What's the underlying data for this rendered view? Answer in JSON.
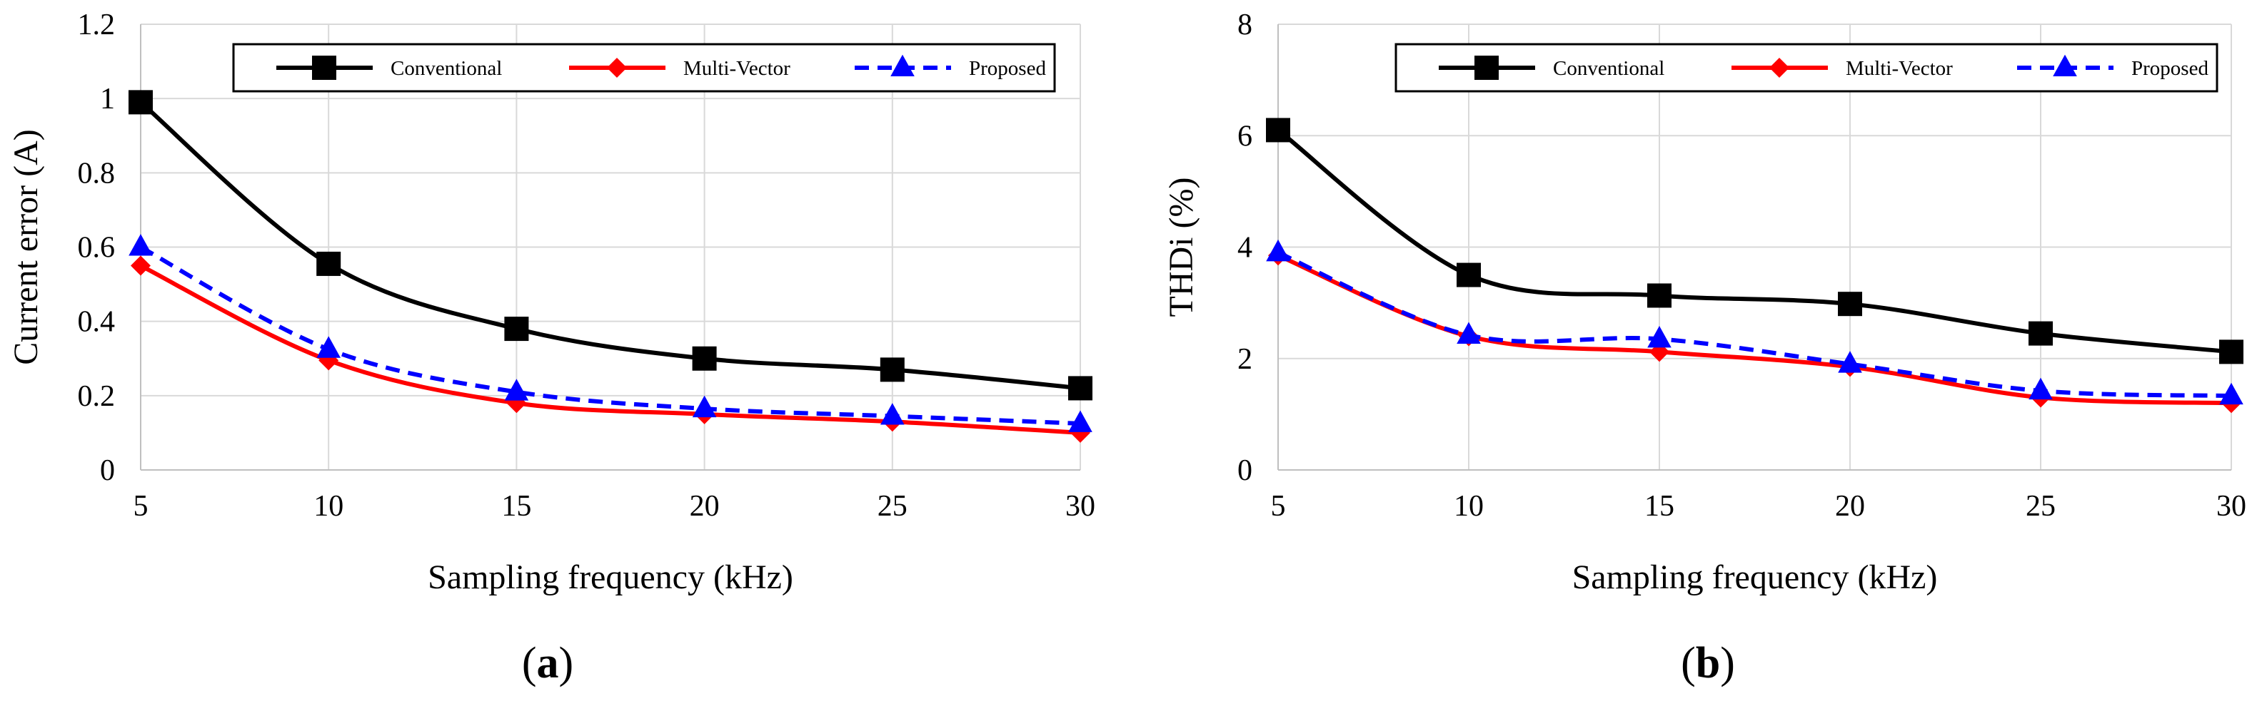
{
  "chart_data": [
    {
      "type": "line",
      "caption": "(a)",
      "caption_letter": "a",
      "xlabel": "Sampling frequency (kHz)",
      "ylabel": "Current error (A)",
      "x": [
        5,
        10,
        15,
        20,
        25,
        30
      ],
      "xlim": [
        5,
        30
      ],
      "xticks": [
        "5",
        "10",
        "15",
        "20",
        "25",
        "30"
      ],
      "ylim": [
        0,
        1.2
      ],
      "yticks": [
        "0",
        "0.2",
        "0.4",
        "0.6",
        "0.8",
        "1",
        "1.2"
      ],
      "grid": true,
      "legend": "top, horizontal, boxed",
      "series": [
        {
          "name": "Conventional",
          "values": [
            0.99,
            0.555,
            0.38,
            0.3,
            0.27,
            0.22
          ],
          "color": "#000000",
          "marker": "square",
          "dash": "solid"
        },
        {
          "name": "Multi-Vector",
          "values": [
            0.55,
            0.295,
            0.18,
            0.15,
            0.13,
            0.1
          ],
          "color": "#ff0000",
          "marker": "diamond",
          "dash": "solid"
        },
        {
          "name": "Proposed",
          "values": [
            0.6,
            0.325,
            0.21,
            0.165,
            0.145,
            0.125
          ],
          "color": "#0000ff",
          "marker": "triangle",
          "dash": "dashed"
        }
      ]
    },
    {
      "type": "line",
      "caption": "(b)",
      "caption_letter": "b",
      "xlabel": "Sampling frequency (kHz)",
      "ylabel": "THDi (%)",
      "x": [
        5,
        10,
        15,
        20,
        25,
        30
      ],
      "xlim": [
        5,
        30
      ],
      "xticks": [
        "5",
        "10",
        "15",
        "20",
        "25",
        "30"
      ],
      "ylim": [
        0,
        8
      ],
      "yticks": [
        "0",
        "2",
        "4",
        "6",
        "8"
      ],
      "grid": true,
      "legend": "top, horizontal, boxed",
      "series": [
        {
          "name": "Conventional",
          "values": [
            6.1,
            3.5,
            3.13,
            2.98,
            2.45,
            2.12
          ],
          "color": "#000000",
          "marker": "square",
          "dash": "solid"
        },
        {
          "name": "Multi-Vector",
          "values": [
            3.85,
            2.4,
            2.12,
            1.85,
            1.3,
            1.2
          ],
          "color": "#ff0000",
          "marker": "diamond",
          "dash": "solid"
        },
        {
          "name": "Proposed",
          "values": [
            3.9,
            2.42,
            2.35,
            1.9,
            1.42,
            1.33
          ],
          "color": "#0000ff",
          "marker": "triangle",
          "dash": "dashed"
        }
      ]
    }
  ]
}
